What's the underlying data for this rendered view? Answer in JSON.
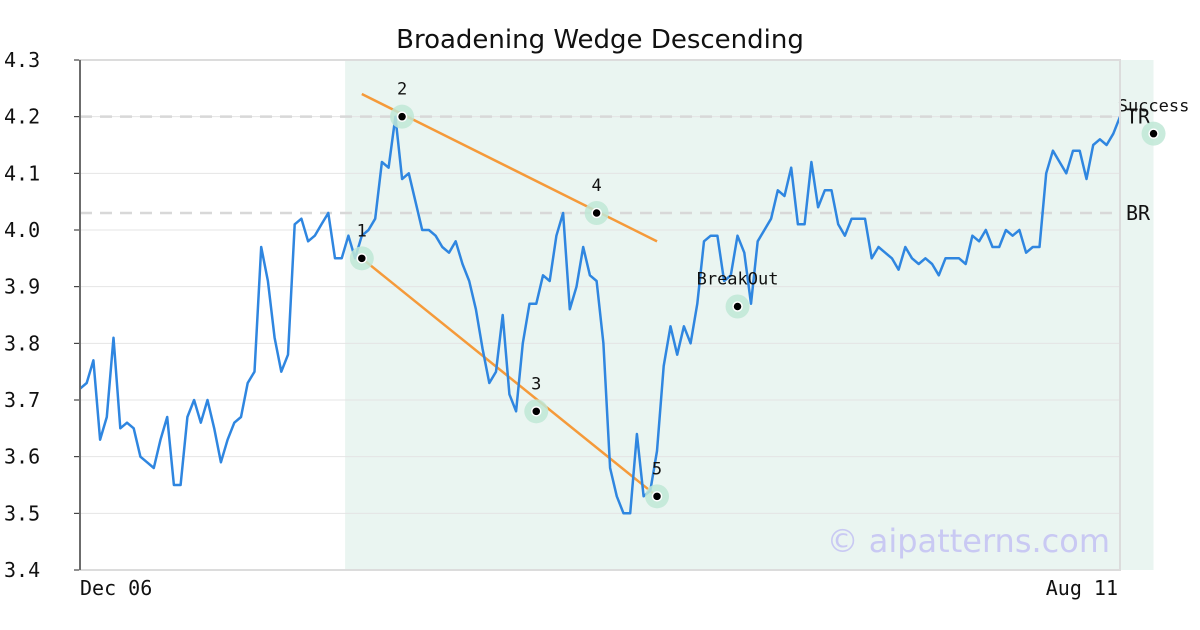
{
  "chart_data": {
    "type": "line",
    "title": "Broadening Wedge Descending",
    "xlabel": "",
    "ylabel": "",
    "ylim": [
      3.4,
      4.3
    ],
    "yticks": [
      "3.4",
      "3.5",
      "3.6",
      "3.7",
      "3.8",
      "3.9",
      "4.0",
      "4.1",
      "4.2",
      "4.3"
    ],
    "x_tick_labels": [
      "Dec 06",
      "Aug 11"
    ],
    "grid": true,
    "series": [
      {
        "name": "",
        "color": "#2f86e0",
        "values": [
          3.72,
          3.73,
          3.77,
          3.63,
          3.67,
          3.81,
          3.65,
          3.66,
          3.65,
          3.6,
          3.59,
          3.58,
          3.63,
          3.67,
          3.55,
          3.55,
          3.67,
          3.7,
          3.66,
          3.7,
          3.65,
          3.59,
          3.63,
          3.66,
          3.67,
          3.73,
          3.75,
          3.97,
          3.91,
          3.81,
          3.75,
          3.78,
          4.01,
          4.02,
          3.98,
          3.99,
          4.01,
          4.03,
          3.95,
          3.95,
          3.99,
          3.95,
          3.99,
          4.0,
          4.02,
          4.12,
          4.11,
          4.2,
          4.09,
          4.1,
          4.05,
          4.0,
          4.0,
          3.99,
          3.97,
          3.96,
          3.98,
          3.94,
          3.91,
          3.86,
          3.79,
          3.73,
          3.75,
          3.85,
          3.71,
          3.68,
          3.8,
          3.87,
          3.87,
          3.92,
          3.91,
          3.99,
          4.03,
          3.86,
          3.9,
          3.97,
          3.92,
          3.91,
          3.8,
          3.58,
          3.53,
          3.5,
          3.5,
          3.64,
          3.53,
          3.54,
          3.61,
          3.76,
          3.83,
          3.78,
          3.83,
          3.8,
          3.87,
          3.98,
          3.99,
          3.99,
          3.91,
          3.92,
          3.99,
          3.96,
          3.87,
          3.98,
          4.0,
          4.02,
          4.07,
          4.06,
          4.11,
          4.01,
          4.01,
          4.12,
          4.04,
          4.07,
          4.07,
          4.01,
          3.99,
          4.02,
          4.02,
          4.02,
          3.95,
          3.97,
          3.96,
          3.95,
          3.93,
          3.97,
          3.95,
          3.94,
          3.95,
          3.94,
          3.92,
          3.95,
          3.95,
          3.95,
          3.94,
          3.99,
          3.98,
          4.0,
          3.97,
          3.97,
          4.0,
          3.99,
          4.0,
          3.96,
          3.97,
          3.97,
          4.1,
          4.14,
          4.12,
          4.1,
          4.14,
          4.14,
          4.09,
          4.15,
          4.16,
          4.15,
          4.17,
          4.2
        ]
      }
    ],
    "shaded_region": {
      "from_index": 41,
      "to_index": 160,
      "color": "#eaf5f1"
    },
    "points": [
      {
        "label": "1",
        "index": 42,
        "value": 3.95
      },
      {
        "label": "2",
        "index": 48,
        "value": 4.2
      },
      {
        "label": "3",
        "index": 68,
        "value": 3.68
      },
      {
        "label": "4",
        "index": 77,
        "value": 4.03
      },
      {
        "label": "5",
        "index": 86,
        "value": 3.53
      },
      {
        "label": "BreakOut",
        "index": 98,
        "value": 3.865
      },
      {
        "label": "Success",
        "index": 160,
        "value": 4.17
      }
    ],
    "trend_lines": [
      {
        "from_index": 42,
        "from_value": 3.95,
        "to_index": 86,
        "to_value": 3.53,
        "color": "#f59a3a"
      },
      {
        "from_index": 42,
        "from_value": 4.24,
        "to_index": 86,
        "to_value": 3.98,
        "color": "#f59a3a"
      }
    ],
    "levels": [
      {
        "label": "TR",
        "value": 4.2
      },
      {
        "label": "BR",
        "value": 4.03
      }
    ],
    "watermark": "© aipatterns.com"
  }
}
